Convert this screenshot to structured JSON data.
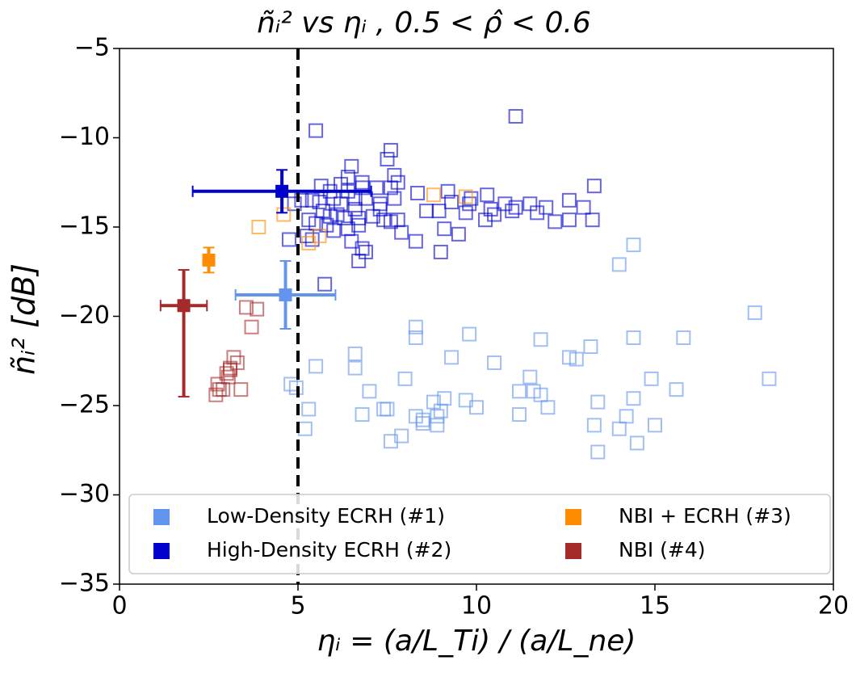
{
  "chart_data": {
    "type": "scatter",
    "title": "ñᵢ²  vs  ηᵢ ,   0.5 < ρ̂ < 0.6",
    "xlabel": "ηᵢ = (a/L_Ti) / (a/L_ne)",
    "ylabel": "ñᵢ² [dB]",
    "xlim": [
      0,
      20
    ],
    "ylim": [
      -35,
      -5
    ],
    "xticks": [
      0,
      5,
      10,
      15,
      20
    ],
    "yticks": [
      {
        "value": -35,
        "label": "−35"
      },
      {
        "value": -30,
        "label": "−30"
      },
      {
        "value": -25,
        "label": "−25"
      },
      {
        "value": -20,
        "label": "−20"
      },
      {
        "value": -15,
        "label": "−15"
      },
      {
        "value": -10,
        "label": "−10"
      },
      {
        "value": -5,
        "label": "−5"
      }
    ],
    "grid": false,
    "vline": 5,
    "legend": "lower center",
    "series": [
      {
        "name": "Low-Density ECRH (#1)",
        "color": "#6495ed",
        "x": [
          4.8,
          4.95,
          5.2,
          5.3,
          5.5,
          6.6,
          6.6,
          6.8,
          7.0,
          7.4,
          7.5,
          7.6,
          7.9,
          8.0,
          8.3,
          8.3,
          8.3,
          8.5,
          8.5,
          8.8,
          8.9,
          9.0,
          9.1,
          8.9,
          9.3,
          9.7,
          9.8,
          10.0,
          10.5,
          11.2,
          11.5,
          11.2,
          11.6,
          11.8,
          11.8,
          12.0,
          12.6,
          12.8,
          13.2,
          13.3,
          13.4,
          13.4,
          14.0,
          14.4,
          14.4,
          14.2,
          14.0,
          14.4,
          14.5,
          14.9,
          15.0,
          15.6,
          15.8,
          17.8,
          18.2
        ],
        "values": [
          -23.8,
          -24.0,
          -26.3,
          -25.2,
          -22.8,
          -22.1,
          -22.9,
          -25.5,
          -24.2,
          -25.2,
          -25.2,
          -27.0,
          -26.7,
          -23.5,
          -20.6,
          -21.2,
          -25.6,
          -26.0,
          -25.8,
          -24.8,
          -25.6,
          -25.3,
          -24.6,
          -26.1,
          -22.3,
          -24.7,
          -21.0,
          -25.1,
          -22.6,
          -25.5,
          -23.4,
          -24.2,
          -24.2,
          -24.4,
          -21.3,
          -25.1,
          -22.3,
          -22.4,
          -21.7,
          -26.1,
          -27.6,
          -24.8,
          -17.1,
          -16.0,
          -21.2,
          -25.6,
          -26.3,
          -24.6,
          -27.1,
          -23.5,
          -26.1,
          -24.1,
          -21.2,
          -19.8,
          -23.5
        ],
        "mean": {
          "x": 4.65,
          "y": -18.8,
          "xerr": [
            1.4,
            1.4
          ],
          "yerr": [
            1.9,
            1.9
          ]
        }
      },
      {
        "name": "High-Density ECRH (#2)",
        "color": "#0000cd",
        "x": [
          5.5,
          11.1,
          7.6,
          7.5,
          6.5,
          6.4,
          7.7,
          5.65,
          6.2,
          5.9,
          6.4,
          6.8,
          7.2,
          7.6,
          7.8,
          6.8,
          4.9,
          5.1,
          5.4,
          5.6,
          6.0,
          6.2,
          6.6,
          6.9,
          7.3,
          7.7,
          7.3,
          5.7,
          5.9,
          6.1,
          6.3,
          6.6,
          6.7,
          7.1,
          5.3,
          5.5,
          5.8,
          6.0,
          6.4,
          6.7,
          7.6,
          7.9,
          5.25,
          5.4,
          4.75,
          6.5,
          6.8,
          6.9,
          6.7,
          5.75,
          8.35,
          8.6,
          8.95,
          9.2,
          9.1,
          9.3,
          9.5,
          9.7,
          9.8,
          9.85,
          10.3,
          10.4,
          10.5,
          10.25,
          10.8,
          11.0,
          11.1,
          11.5,
          11.7,
          11.95,
          12.2,
          12.6,
          12.6,
          13.0,
          13.3,
          13.25,
          9.0,
          7.8,
          7.4,
          8.3
        ],
        "values": [
          -9.6,
          -8.8,
          -10.7,
          -11.2,
          -11.6,
          -12.2,
          -12.1,
          -12.7,
          -12.6,
          -13.0,
          -13.0,
          -12.8,
          -12.8,
          -12.8,
          -12.5,
          -12.5,
          -13.7,
          -13.5,
          -13.5,
          -13.6,
          -13.4,
          -13.7,
          -13.4,
          -13.4,
          -13.7,
          -13.4,
          -14.0,
          -14.1,
          -14.4,
          -14.3,
          -14.5,
          -14.0,
          -14.5,
          -14.4,
          -14.6,
          -14.8,
          -14.9,
          -15.2,
          -15.1,
          -14.9,
          -14.7,
          -15.3,
          -15.5,
          -15.7,
          -15.7,
          -15.8,
          -16.2,
          -16.4,
          -16.9,
          -18.2,
          -13.1,
          -14.1,
          -14.1,
          -13.0,
          -15.1,
          -13.6,
          -15.4,
          -14.2,
          -13.7,
          -13.4,
          -13.2,
          -14.0,
          -14.3,
          -14.6,
          -13.7,
          -14.1,
          -13.9,
          -13.7,
          -14.2,
          -13.9,
          -14.7,
          -13.5,
          -14.6,
          -13.9,
          -12.7,
          -14.6,
          -16.4,
          -14.6,
          -14.6,
          -15.8
        ],
        "mean": {
          "x": 4.55,
          "y": -13.0,
          "xerr": [
            2.5,
            2.5
          ],
          "yerr": [
            1.2,
            1.2
          ]
        }
      },
      {
        "name": "NBI + ECRH (#3)",
        "color": "#ff8c00",
        "x": [
          3.9,
          4.6,
          5.3,
          5.6,
          8.8,
          9.7
        ],
        "values": [
          -15.0,
          -14.3,
          -15.9,
          -15.5,
          -13.2,
          -13.3
        ],
        "mean": {
          "x": 2.5,
          "y": -16.85,
          "xerr": [
            0.15,
            0.15
          ],
          "yerr": [
            0.7,
            0.7
          ]
        }
      },
      {
        "name": "NBI (#4)",
        "color": "#a52a2a",
        "x": [
          3.55,
          3.85,
          3.7,
          3.2,
          3.3,
          3.1,
          3.0,
          3.05,
          2.75,
          2.7,
          2.9,
          3.4,
          3.1,
          2.8
        ],
        "values": [
          -19.5,
          -19.6,
          -20.6,
          -22.3,
          -22.6,
          -22.9,
          -23.2,
          -23.4,
          -23.8,
          -24.4,
          -24.1,
          -24.1,
          -23.0,
          -24.1
        ],
        "mean": {
          "x": 1.8,
          "y": -19.4,
          "xerr": [
            0.65,
            0.65
          ],
          "yerr": [
            5.1,
            2.0
          ]
        }
      }
    ]
  }
}
